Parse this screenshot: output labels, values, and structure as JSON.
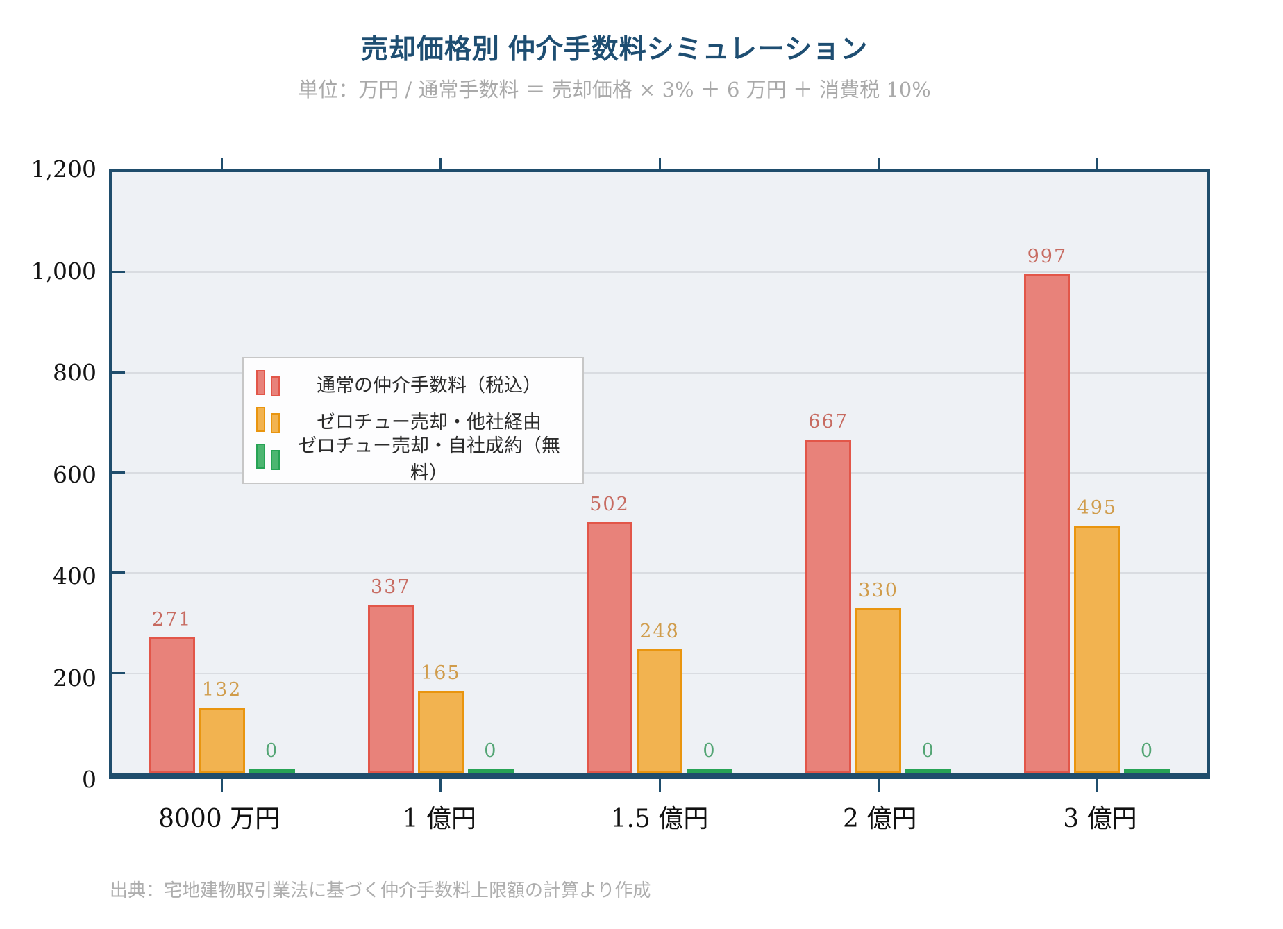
{
  "title": "売却価格別 仲介手数料シミュレーション",
  "subtitle": "単位：万円 / 通常手数料 ＝ 売却価格 × 3% ＋ 6 万円 ＋ 消費税 10%",
  "source": "出典：宅地建物取引業法に基づく仲介手数料上限額の計算より作成",
  "colors": {
    "frame": "#1f4d6c",
    "plot_background": "#eef1f5",
    "gridline": "#d9dce1",
    "title": "#1e4e72",
    "subtitle_text": "#a9a9a9",
    "source_text": "#aeaeae"
  },
  "chart_data": {
    "type": "bar",
    "title": "売却価格別 仲介手数料シミュレーション",
    "subtitle": "単位：万円 / 通常手数料 ＝ 売却価格 × 3% ＋ 6 万円 ＋ 消費税 10%",
    "categories": [
      "8000 万円",
      "1 億円",
      "1.5 億円",
      "2 億円",
      "3 億円"
    ],
    "series": [
      {
        "name": "通常の仲介手数料（税込）",
        "values": [
          271,
          337,
          502,
          667,
          997
        ],
        "fill": "#e8827a",
        "border": "#e25649",
        "label_color": "#c76b61"
      },
      {
        "name": "ゼロチュー売却・他社経由",
        "values": [
          132,
          165,
          248,
          330,
          495
        ],
        "fill": "#f2b350",
        "border": "#e9950f",
        "label_color": "#d09c4b"
      },
      {
        "name": "ゼロチュー売却・自社成約（無料）",
        "values": [
          0,
          0,
          0,
          0,
          0
        ],
        "fill": "#4db671",
        "border": "#27a355",
        "label_color": "#53a574"
      }
    ],
    "xlabel": "",
    "ylabel": "",
    "ylim": [
      0,
      1200
    ],
    "ytick_labels": [
      "0",
      "200",
      "400",
      "600",
      "800",
      "1,000",
      "1,200"
    ],
    "grid": true,
    "legend_position": "upper-left",
    "annotations": "各棒の上に値ラベル表示"
  }
}
